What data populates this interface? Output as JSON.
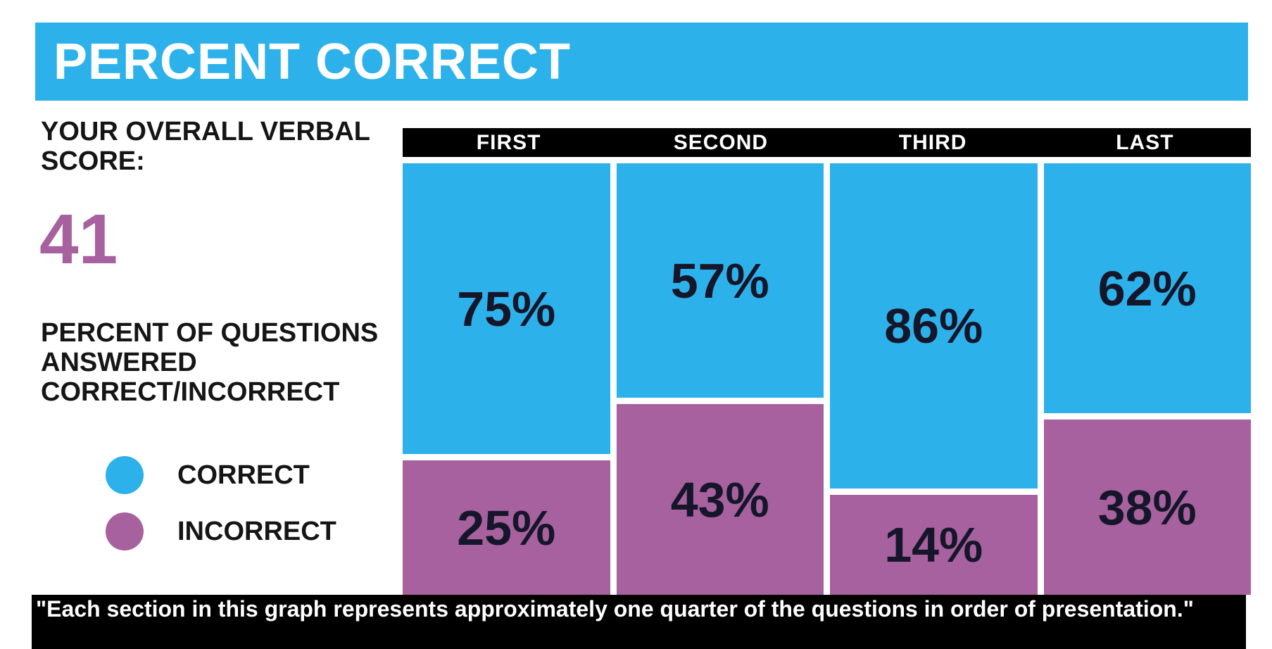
{
  "banner": {
    "title": "PERCENT CORRECT",
    "bg_color": "#2DB1EB",
    "text_color": "#FFFFFF"
  },
  "score_panel": {
    "label": "YOUR OVERALL VERBAL SCORE:",
    "value": "41",
    "value_color": "#A6619E",
    "description": "PERCENT OF QUESTIONS ANSWERED CORRECT/INCORRECT"
  },
  "legend": {
    "items": [
      {
        "label": "CORRECT",
        "color": "#2DB1EB"
      },
      {
        "label": "INCORRECT",
        "color": "#A6619E"
      }
    ]
  },
  "chart_data": {
    "type": "bar",
    "stacked": true,
    "orientation": "vertical",
    "title": "PERCENT CORRECT",
    "categories": [
      "FIRST",
      "SECOND",
      "THIRD",
      "LAST"
    ],
    "series": [
      {
        "name": "CORRECT",
        "color": "#2DB1EB",
        "values": [
          75,
          57,
          86,
          62
        ]
      },
      {
        "name": "INCORRECT",
        "color": "#A6619E",
        "values": [
          25,
          43,
          14,
          38
        ]
      }
    ],
    "value_suffix": "%",
    "value_label_color": "#16162A",
    "header_bg": "#000000",
    "header_text_color": "#FFFFFF",
    "axes": "none",
    "grid": false,
    "legend_position": "left"
  },
  "caption": {
    "text": "\"Each section in this graph represents approximately one quarter of the questions in order of presentation.\"",
    "bg_color": "#000000",
    "text_color": "#FFFFFF"
  }
}
